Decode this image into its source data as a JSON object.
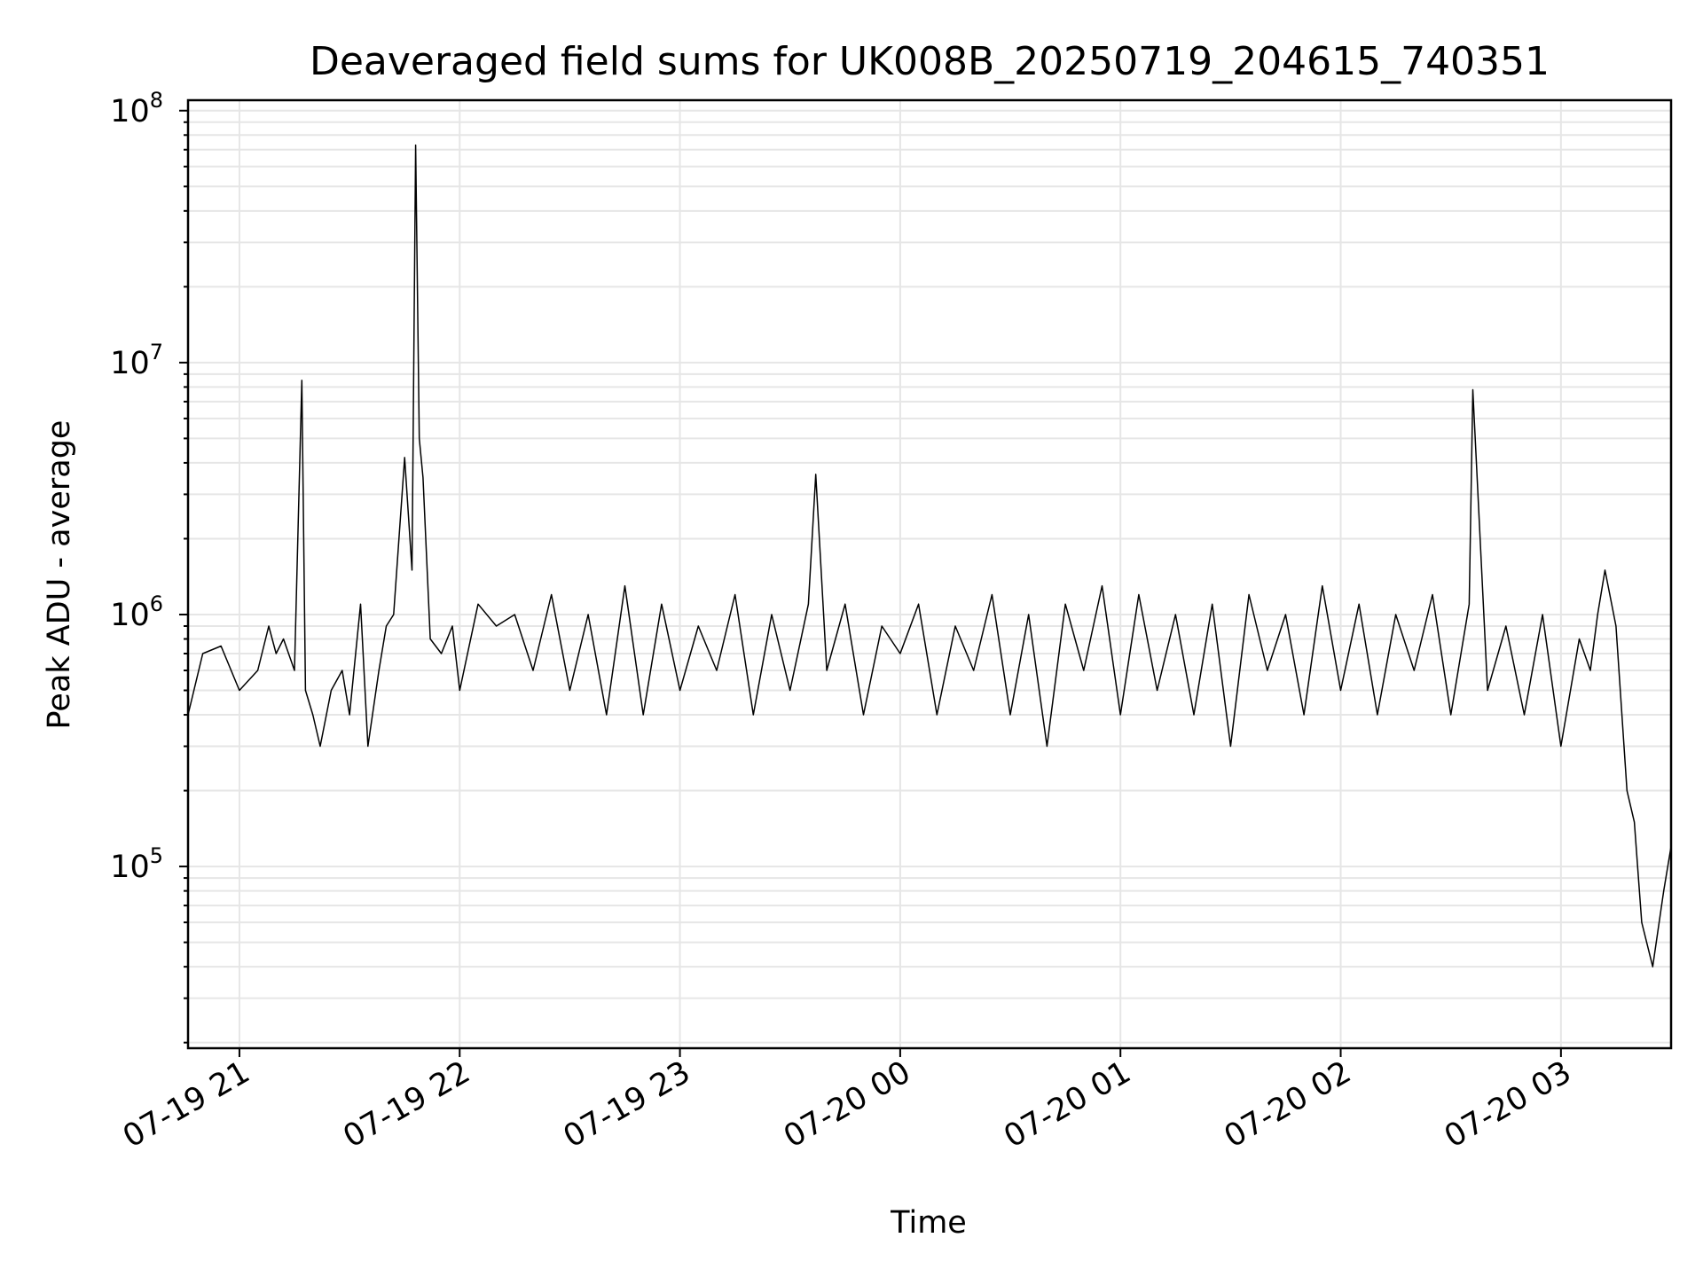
{
  "chart_data": {
    "type": "line",
    "title": "Deaveraged field sums for UK008B_20250719_204615_740351",
    "xlabel": "Time",
    "ylabel": "Peak ADU - average",
    "yscale": "log",
    "ylim": [
      19000,
      110000000
    ],
    "xlim": [
      "2025-07-19 20:46",
      "2025-07-20 03:30"
    ],
    "x_ticks": [
      {
        "label": "07-19 21",
        "time": "2025-07-19 21:00"
      },
      {
        "label": "07-19 22",
        "time": "2025-07-19 22:00"
      },
      {
        "label": "07-19 23",
        "time": "2025-07-19 23:00"
      },
      {
        "label": "07-20 00",
        "time": "2025-07-20 00:00"
      },
      {
        "label": "07-20 01",
        "time": "2025-07-20 01:00"
      },
      {
        "label": "07-20 02",
        "time": "2025-07-20 02:00"
      },
      {
        "label": "07-20 03",
        "time": "2025-07-20 03:00"
      }
    ],
    "y_ticks": [
      {
        "base": "10",
        "exp": "5",
        "value": 100000
      },
      {
        "base": "10",
        "exp": "6",
        "value": 1000000
      },
      {
        "base": "10",
        "exp": "7",
        "value": 10000000
      },
      {
        "base": "10",
        "exp": "8",
        "value": 100000000
      }
    ],
    "grid": true,
    "line_color": "#000000",
    "series": [
      {
        "x": [
          "2025-07-19 20:46",
          "2025-07-19 20:50",
          "2025-07-19 20:55",
          "2025-07-19 21:00",
          "2025-07-19 21:05",
          "2025-07-19 21:08",
          "2025-07-19 21:10",
          "2025-07-19 21:12",
          "2025-07-19 21:15",
          "2025-07-19 21:17",
          "2025-07-19 21:18",
          "2025-07-19 21:20",
          "2025-07-19 21:22",
          "2025-07-19 21:25",
          "2025-07-19 21:28",
          "2025-07-19 21:30",
          "2025-07-19 21:33",
          "2025-07-19 21:35",
          "2025-07-19 21:38",
          "2025-07-19 21:40",
          "2025-07-19 21:42",
          "2025-07-19 21:45",
          "2025-07-19 21:47",
          "2025-07-19 21:48",
          "2025-07-19 21:49",
          "2025-07-19 21:50",
          "2025-07-19 21:52",
          "2025-07-19 21:55",
          "2025-07-19 21:58",
          "2025-07-19 22:00",
          "2025-07-19 22:05",
          "2025-07-19 22:10",
          "2025-07-19 22:15",
          "2025-07-19 22:20",
          "2025-07-19 22:25",
          "2025-07-19 22:30",
          "2025-07-19 22:35",
          "2025-07-19 22:40",
          "2025-07-19 22:45",
          "2025-07-19 22:50",
          "2025-07-19 22:55",
          "2025-07-19 23:00",
          "2025-07-19 23:05",
          "2025-07-19 23:10",
          "2025-07-19 23:15",
          "2025-07-19 23:20",
          "2025-07-19 23:25",
          "2025-07-19 23:30",
          "2025-07-19 23:35",
          "2025-07-19 23:37",
          "2025-07-19 23:40",
          "2025-07-19 23:45",
          "2025-07-19 23:50",
          "2025-07-19 23:55",
          "2025-07-20 00:00",
          "2025-07-20 00:05",
          "2025-07-20 00:10",
          "2025-07-20 00:15",
          "2025-07-20 00:20",
          "2025-07-20 00:25",
          "2025-07-20 00:30",
          "2025-07-20 00:35",
          "2025-07-20 00:40",
          "2025-07-20 00:45",
          "2025-07-20 00:50",
          "2025-07-20 00:55",
          "2025-07-20 01:00",
          "2025-07-20 01:05",
          "2025-07-20 01:10",
          "2025-07-20 01:15",
          "2025-07-20 01:20",
          "2025-07-20 01:25",
          "2025-07-20 01:30",
          "2025-07-20 01:35",
          "2025-07-20 01:40",
          "2025-07-20 01:45",
          "2025-07-20 01:50",
          "2025-07-20 01:55",
          "2025-07-20 02:00",
          "2025-07-20 02:05",
          "2025-07-20 02:10",
          "2025-07-20 02:15",
          "2025-07-20 02:20",
          "2025-07-20 02:25",
          "2025-07-20 02:30",
          "2025-07-20 02:35",
          "2025-07-20 02:36",
          "2025-07-20 02:40",
          "2025-07-20 02:45",
          "2025-07-20 02:50",
          "2025-07-20 02:55",
          "2025-07-20 03:00",
          "2025-07-20 03:05",
          "2025-07-20 03:08",
          "2025-07-20 03:10",
          "2025-07-20 03:12",
          "2025-07-20 03:15",
          "2025-07-20 03:18",
          "2025-07-20 03:20",
          "2025-07-20 03:22",
          "2025-07-20 03:25",
          "2025-07-20 03:28",
          "2025-07-20 03:30"
        ],
        "y": [
          400000,
          700000,
          750000,
          500000,
          600000,
          900000,
          700000,
          800000,
          600000,
          8500000,
          500000,
          400000,
          300000,
          500000,
          600000,
          400000,
          1100000,
          300000,
          600000,
          900000,
          1000000,
          4200000,
          1500000,
          73000000,
          5000000,
          3500000,
          800000,
          700000,
          900000,
          500000,
          1100000,
          900000,
          1000000,
          600000,
          1200000,
          500000,
          1000000,
          400000,
          1300000,
          400000,
          1100000,
          500000,
          900000,
          600000,
          1200000,
          400000,
          1000000,
          500000,
          1100000,
          3600000,
          600000,
          1100000,
          400000,
          900000,
          700000,
          1100000,
          400000,
          900000,
          600000,
          1200000,
          400000,
          1000000,
          300000,
          1100000,
          600000,
          1300000,
          400000,
          1200000,
          500000,
          1000000,
          400000,
          1100000,
          300000,
          1200000,
          600000,
          1000000,
          400000,
          1300000,
          500000,
          1100000,
          400000,
          1000000,
          600000,
          1200000,
          400000,
          1100000,
          7800000,
          500000,
          900000,
          400000,
          1000000,
          300000,
          800000,
          600000,
          1000000,
          1500000,
          900000,
          200000,
          150000,
          60000,
          40000,
          80000,
          120000
        ]
      }
    ]
  }
}
